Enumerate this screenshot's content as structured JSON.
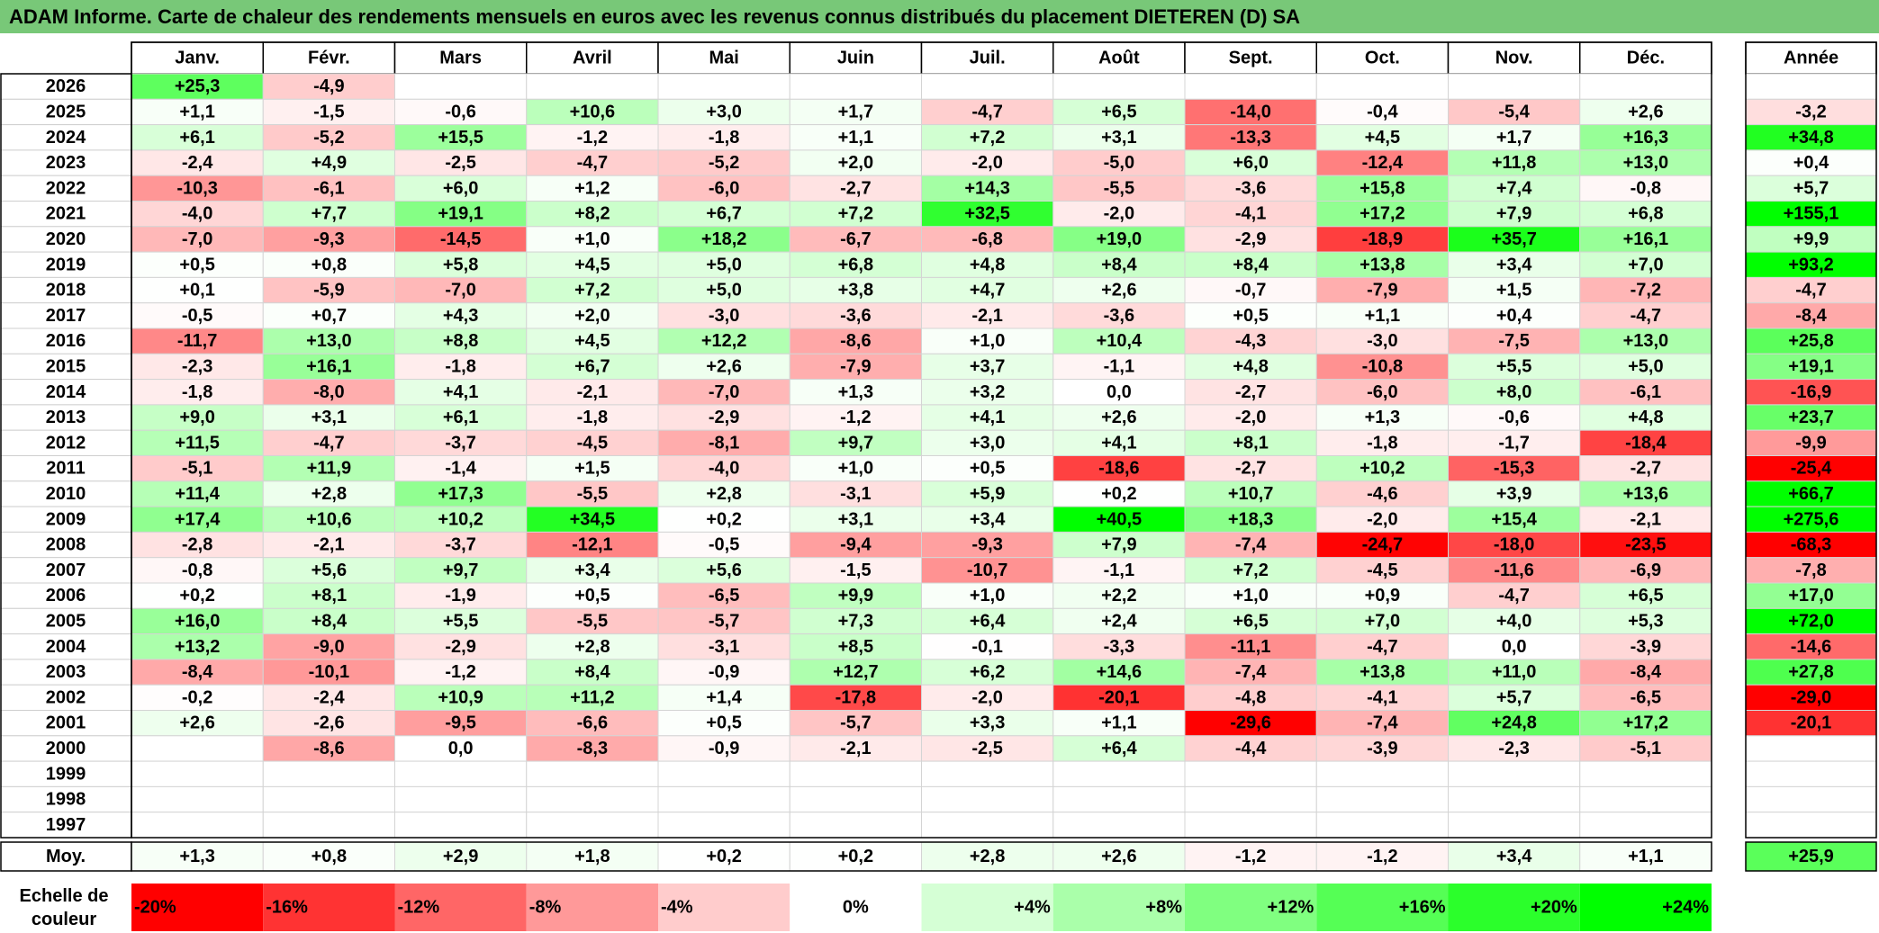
{
  "title": "ADAM Informe. Carte de chaleur des rendements mensuels en euros avec les revenus connus distribués du placement DIETEREN (D) SA",
  "colors": {
    "title_bg": "#78c878",
    "positive_max": "#00ff00",
    "negative_max": "#ff0000",
    "neutral": "#ffffff"
  },
  "chart_data": {
    "type": "heatmap",
    "months": [
      "Janv.",
      "Févr.",
      "Mars",
      "Avril",
      "Mai",
      "Juin",
      "Juil.",
      "Août",
      "Sept.",
      "Oct.",
      "Nov.",
      "Déc."
    ],
    "year_header": "Année",
    "rows": [
      {
        "year": "2026",
        "values": [
          "+25,3",
          "-4,9",
          "",
          "",
          "",
          "",
          "",
          "",
          "",
          "",
          "",
          ""
        ],
        "annual": ""
      },
      {
        "year": "2025",
        "values": [
          "+1,1",
          "-1,5",
          "-0,6",
          "+10,6",
          "+3,0",
          "+1,7",
          "-4,7",
          "+6,5",
          "-14,0",
          "-0,4",
          "-5,4",
          "+2,6"
        ],
        "annual": "-3,2"
      },
      {
        "year": "2024",
        "values": [
          "+6,1",
          "-5,2",
          "+15,5",
          "-1,2",
          "-1,8",
          "+1,1",
          "+7,2",
          "+3,1",
          "-13,3",
          "+4,5",
          "+1,7",
          "+16,3"
        ],
        "annual": "+34,8"
      },
      {
        "year": "2023",
        "values": [
          "-2,4",
          "+4,9",
          "-2,5",
          "-4,7",
          "-5,2",
          "+2,0",
          "-2,0",
          "-5,0",
          "+6,0",
          "-12,4",
          "+11,8",
          "+13,0"
        ],
        "annual": "+0,4"
      },
      {
        "year": "2022",
        "values": [
          "-10,3",
          "-6,1",
          "+6,0",
          "+1,2",
          "-6,0",
          "-2,7",
          "+14,3",
          "-5,5",
          "-3,6",
          "+15,8",
          "+7,4",
          "-0,8"
        ],
        "annual": "+5,7"
      },
      {
        "year": "2021",
        "values": [
          "-4,0",
          "+7,7",
          "+19,1",
          "+8,2",
          "+6,7",
          "+7,2",
          "+32,5",
          "-2,0",
          "-4,1",
          "+17,2",
          "+7,9",
          "+6,8"
        ],
        "annual": "+155,1"
      },
      {
        "year": "2020",
        "values": [
          "-7,0",
          "-9,3",
          "-14,5",
          "+1,0",
          "+18,2",
          "-6,7",
          "-6,8",
          "+19,0",
          "-2,9",
          "-18,9",
          "+35,7",
          "+16,1"
        ],
        "annual": "+9,9"
      },
      {
        "year": "2019",
        "values": [
          "+0,5",
          "+0,8",
          "+5,8",
          "+4,5",
          "+5,0",
          "+6,8",
          "+4,8",
          "+8,4",
          "+8,4",
          "+13,8",
          "+3,4",
          "+7,0"
        ],
        "annual": "+93,2"
      },
      {
        "year": "2018",
        "values": [
          "+0,1",
          "-5,9",
          "-7,0",
          "+7,2",
          "+5,0",
          "+3,8",
          "+4,7",
          "+2,6",
          "-0,7",
          "-7,9",
          "+1,5",
          "-7,2"
        ],
        "annual": "-4,7"
      },
      {
        "year": "2017",
        "values": [
          "-0,5",
          "+0,7",
          "+4,3",
          "+2,0",
          "-3,0",
          "-3,6",
          "-2,1",
          "-3,6",
          "+0,5",
          "+1,1",
          "+0,4",
          "-4,7"
        ],
        "annual": "-8,4"
      },
      {
        "year": "2016",
        "values": [
          "-11,7",
          "+13,0",
          "+8,8",
          "+4,5",
          "+12,2",
          "-8,6",
          "+1,0",
          "+10,4",
          "-4,3",
          "-3,0",
          "-7,5",
          "+13,0"
        ],
        "annual": "+25,8"
      },
      {
        "year": "2015",
        "values": [
          "-2,3",
          "+16,1",
          "-1,8",
          "+6,7",
          "+2,6",
          "-7,9",
          "+3,7",
          "-1,1",
          "+4,8",
          "-10,8",
          "+5,5",
          "+5,0"
        ],
        "annual": "+19,1"
      },
      {
        "year": "2014",
        "values": [
          "-1,8",
          "-8,0",
          "+4,1",
          "-2,1",
          "-7,0",
          "+1,3",
          "+3,2",
          "0,0",
          "-2,7",
          "-6,0",
          "+8,0",
          "-6,1"
        ],
        "annual": "-16,9"
      },
      {
        "year": "2013",
        "values": [
          "+9,0",
          "+3,1",
          "+6,1",
          "-1,8",
          "-2,9",
          "-1,2",
          "+4,1",
          "+2,6",
          "-2,0",
          "+1,3",
          "-0,6",
          "+4,8"
        ],
        "annual": "+23,7"
      },
      {
        "year": "2012",
        "values": [
          "+11,5",
          "-4,7",
          "-3,7",
          "-4,5",
          "-8,1",
          "+9,7",
          "+3,0",
          "+4,1",
          "+8,1",
          "-1,8",
          "-1,7",
          "-18,4"
        ],
        "annual": "-9,9"
      },
      {
        "year": "2011",
        "values": [
          "-5,1",
          "+11,9",
          "-1,4",
          "+1,5",
          "-4,0",
          "+1,0",
          "+0,5",
          "-18,6",
          "-2,7",
          "+10,2",
          "-15,3",
          "-2,7"
        ],
        "annual": "-25,4"
      },
      {
        "year": "2010",
        "values": [
          "+11,4",
          "+2,8",
          "+17,3",
          "-5,5",
          "+2,8",
          "-3,1",
          "+5,9",
          "+0,2",
          "+10,7",
          "-4,6",
          "+3,9",
          "+13,6"
        ],
        "annual": "+66,7"
      },
      {
        "year": "2009",
        "values": [
          "+17,4",
          "+10,6",
          "+10,2",
          "+34,5",
          "+0,2",
          "+3,1",
          "+3,4",
          "+40,5",
          "+18,3",
          "-2,0",
          "+15,4",
          "-2,1"
        ],
        "annual": "+275,6"
      },
      {
        "year": "2008",
        "values": [
          "-2,8",
          "-2,1",
          "-3,7",
          "-12,1",
          "-0,5",
          "-9,4",
          "-9,3",
          "+7,9",
          "-7,4",
          "-24,7",
          "-18,0",
          "-23,5"
        ],
        "annual": "-68,3"
      },
      {
        "year": "2007",
        "values": [
          "-0,8",
          "+5,6",
          "+9,7",
          "+3,4",
          "+5,6",
          "-1,5",
          "-10,7",
          "-1,1",
          "+7,2",
          "-4,5",
          "-11,6",
          "-6,9"
        ],
        "annual": "-7,8"
      },
      {
        "year": "2006",
        "values": [
          "+0,2",
          "+8,1",
          "-1,9",
          "+0,5",
          "-6,5",
          "+9,9",
          "+1,0",
          "+2,2",
          "+1,0",
          "+0,9",
          "-4,7",
          "+6,5"
        ],
        "annual": "+17,0"
      },
      {
        "year": "2005",
        "values": [
          "+16,0",
          "+8,4",
          "+5,5",
          "-5,5",
          "-5,7",
          "+7,3",
          "+6,4",
          "+2,4",
          "+6,5",
          "+7,0",
          "+4,0",
          "+5,3"
        ],
        "annual": "+72,0"
      },
      {
        "year": "2004",
        "values": [
          "+13,2",
          "-9,0",
          "-2,9",
          "+2,8",
          "-3,1",
          "+8,5",
          "-0,1",
          "-3,3",
          "-11,1",
          "-4,7",
          "0,0",
          "-3,9"
        ],
        "annual": "-14,6"
      },
      {
        "year": "2003",
        "values": [
          "-8,4",
          "-10,1",
          "-1,2",
          "+8,4",
          "-0,9",
          "+12,7",
          "+6,2",
          "+14,6",
          "-7,4",
          "+13,8",
          "+11,0",
          "-8,4"
        ],
        "annual": "+27,8"
      },
      {
        "year": "2002",
        "values": [
          "-0,2",
          "-2,4",
          "+10,9",
          "+11,2",
          "+1,4",
          "-17,8",
          "-2,0",
          "-20,1",
          "-4,8",
          "-4,1",
          "+5,7",
          "-6,5"
        ],
        "annual": "-29,0"
      },
      {
        "year": "2001",
        "values": [
          "+2,6",
          "-2,6",
          "-9,5",
          "-6,6",
          "+0,5",
          "-5,7",
          "+3,3",
          "+1,1",
          "-29,6",
          "-7,4",
          "+24,8",
          "+17,2"
        ],
        "annual": "-20,1"
      },
      {
        "year": "2000",
        "values": [
          "",
          "-8,6",
          "0,0",
          "-8,3",
          "-0,9",
          "-2,1",
          "-2,5",
          "+6,4",
          "-4,4",
          "-3,9",
          "-2,3",
          "-5,1"
        ],
        "annual": ""
      },
      {
        "year": "1999",
        "values": [
          "",
          "",
          "",
          "",
          "",
          "",
          "",
          "",
          "",
          "",
          "",
          ""
        ],
        "annual": ""
      },
      {
        "year": "1998",
        "values": [
          "",
          "",
          "",
          "",
          "",
          "",
          "",
          "",
          "",
          "",
          "",
          ""
        ],
        "annual": ""
      },
      {
        "year": "1997",
        "values": [
          "",
          "",
          "",
          "",
          "",
          "",
          "",
          "",
          "",
          "",
          "",
          ""
        ],
        "annual": ""
      }
    ],
    "average": {
      "label": "Moy.",
      "values": [
        "+1,3",
        "+0,8",
        "+2,9",
        "+1,8",
        "+0,2",
        "+0,2",
        "+2,8",
        "+2,6",
        "-1,2",
        "-1,2",
        "+3,4",
        "+1,1"
      ],
      "annual": "+25,9"
    },
    "scale": {
      "label_line1": "Echelle de",
      "label_line2": "couleur",
      "steps": [
        "-20%",
        "-16%",
        "-12%",
        "-8%",
        "-4%",
        "0%",
        "+4%",
        "+8%",
        "+12%",
        "+16%",
        "+20%",
        "+24%"
      ]
    }
  }
}
